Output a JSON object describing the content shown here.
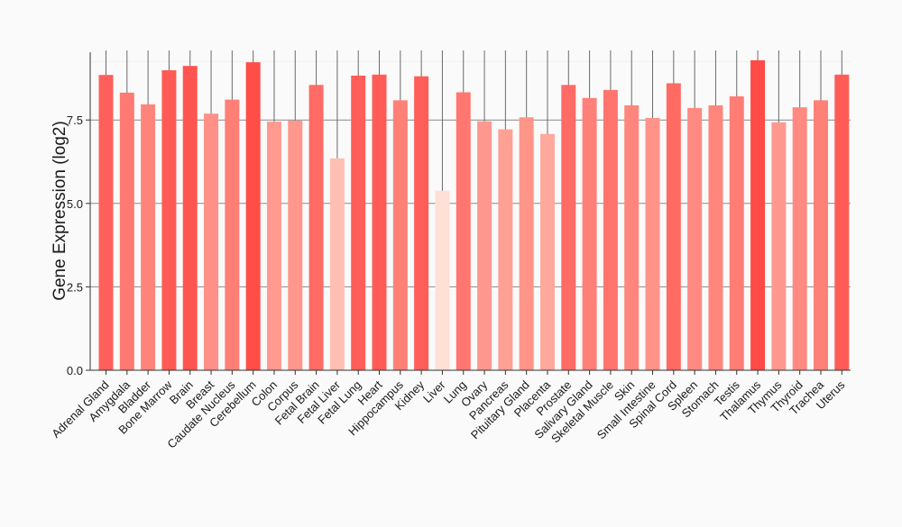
{
  "chart_data": {
    "type": "bar",
    "title": "",
    "xlabel": "",
    "ylabel": "Gene Expression (log2)",
    "ylim": [
      0,
      9.8
    ],
    "yticks": [
      0,
      2.5,
      5,
      7.5
    ],
    "ytick_labels": [
      "0.0",
      "2.5",
      "5.0",
      "7.5"
    ],
    "grid": "horizontal",
    "categories": [
      "Adrenal Gland",
      "Amygdala",
      "Bladder",
      "Bone Marrow",
      "Brain",
      "Breast",
      "Caudate Nucleus",
      "Cerebellum",
      "Colon",
      "Corpus",
      "Fetal Brain",
      "Fetal Liver",
      "Fetal Lung",
      "Heart",
      "Hippocampus",
      "Kidney",
      "Liver",
      "Lung",
      "Ovary",
      "Pancreas",
      "Pituitary Gland",
      "Placenta",
      "Prostate",
      "Salivary Gland",
      "Skeletal Muscle",
      "Skin",
      "Small Intestine",
      "Spinal Cord",
      "Spleen",
      "Stomach",
      "Testis",
      "Thalamus",
      "Thymus",
      "Thyroid",
      "Trachea",
      "Uterus"
    ],
    "values": [
      8.85,
      8.32,
      7.97,
      8.99,
      9.12,
      7.69,
      8.11,
      9.23,
      7.45,
      7.48,
      8.55,
      6.35,
      8.83,
      8.86,
      8.09,
      8.81,
      5.38,
      8.33,
      7.46,
      7.22,
      7.58,
      7.08,
      8.55,
      8.16,
      8.4,
      7.94,
      7.56,
      8.6,
      7.86,
      7.94,
      8.21,
      9.29,
      7.43,
      7.88,
      8.09,
      8.86
    ],
    "colors": [
      "#ff5f5a",
      "#ff7a72",
      "#ff857c",
      "#ff5a55",
      "#ff5550",
      "#ff9088",
      "#ff7f76",
      "#ff4d48",
      "#ff9a90",
      "#ff978d",
      "#ff6b65",
      "#ffbfb2",
      "#ff5e59",
      "#ff5c57",
      "#ff8077",
      "#ff5e59",
      "#ffe0d6",
      "#ff7770",
      "#ff988e",
      "#ffa095",
      "#ff9489",
      "#ffa89c",
      "#ff6b65",
      "#ff8078",
      "#ff756e",
      "#ff867d",
      "#ff9389",
      "#ff6a63",
      "#ff8a81",
      "#ff867d",
      "#ff7d75",
      "#ff4a45",
      "#ff998f",
      "#ff8a81",
      "#ff8077",
      "#ff5c57"
    ]
  }
}
